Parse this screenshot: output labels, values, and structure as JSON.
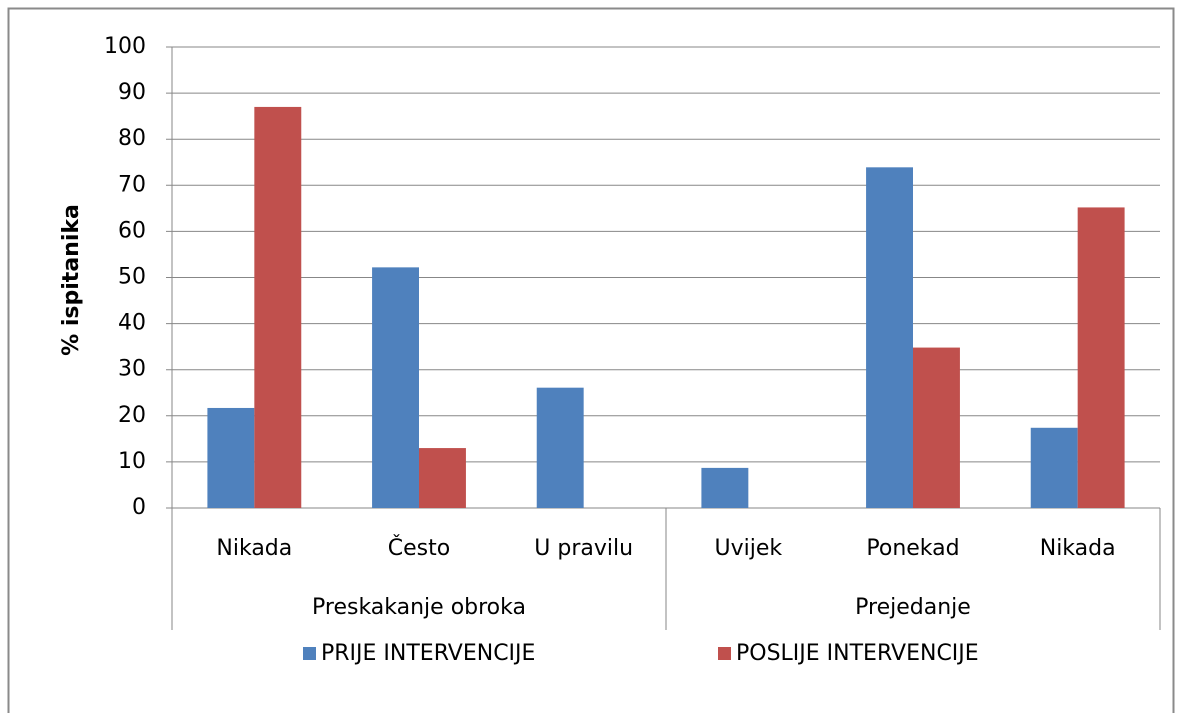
{
  "chart_data": {
    "type": "bar",
    "y_label": "% ispitanika",
    "categories": [
      "Nikada",
      "Često",
      "U pravilu",
      "Uvijek",
      "Ponekad",
      "Nikada"
    ],
    "groups": [
      "Preskakanje obroka",
      "Prejedanje"
    ],
    "series": [
      {
        "name": "PRIJE INTERVENCIJE",
        "color": "#4f81bd",
        "values": [
          21.7,
          52.2,
          26.1,
          8.7,
          73.9,
          17.4
        ]
      },
      {
        "name": "POSLIJE INTERVENCIJE",
        "color": "#c0504d",
        "values": [
          87,
          13,
          0,
          0,
          34.8,
          65.2
        ]
      }
    ],
    "ylim": [
      0,
      100
    ],
    "yticks": [
      0,
      10,
      20,
      30,
      40,
      50,
      60,
      70,
      80,
      90,
      100
    ],
    "grid": true,
    "legend": "bottom"
  }
}
